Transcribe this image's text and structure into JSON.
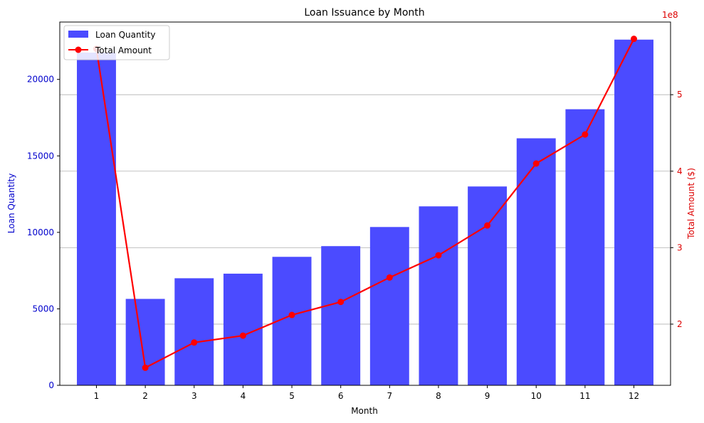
{
  "chart_data": {
    "type": "bar",
    "title": "Loan Issuance by Month",
    "xlabel": "Month",
    "ylabel_left": "Loan Quantity",
    "ylabel_right": "Total Amount ($)",
    "right_axis_offset_label": "1e8",
    "categories": [
      "1",
      "2",
      "3",
      "4",
      "5",
      "6",
      "7",
      "8",
      "9",
      "10",
      "11",
      "12"
    ],
    "series": [
      {
        "name": "Loan Quantity",
        "type": "bar",
        "axis": "left",
        "color": "#4b4bff",
        "values": [
          21750,
          5650,
          7000,
          7300,
          8400,
          9100,
          10350,
          11700,
          13000,
          16150,
          18050,
          22600
        ]
      },
      {
        "name": "Total Amount",
        "type": "line",
        "axis": "right",
        "color": "#ff0000",
        "values": [
          5.6,
          1.43,
          1.76,
          1.85,
          2.12,
          2.29,
          2.61,
          2.9,
          3.29,
          4.1,
          4.48,
          5.73
        ]
      }
    ],
    "ylim_left": [
      0,
      23750
    ],
    "yticks_left": [
      0,
      5000,
      10000,
      15000,
      20000
    ],
    "ylim_right": [
      1.2,
      5.95
    ],
    "yticks_right": [
      2,
      3,
      4,
      5
    ],
    "grid": "horizontal lines on right axis ticks",
    "legend_placement": "upper-left",
    "left_axis_color": "#0000cc",
    "right_axis_color": "#dd0000"
  }
}
